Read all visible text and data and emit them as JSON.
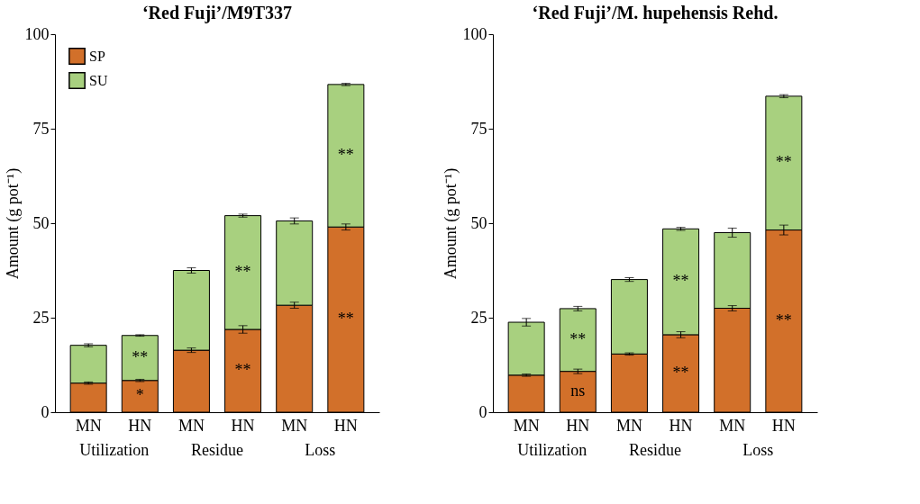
{
  "chart_data": [
    {
      "type": "bar",
      "title": "‘Red Fuji’/M9T337",
      "ylabel": "Amount (g pot⁻¹)",
      "stacked": true,
      "categories": [
        "MN",
        "HN",
        "MN",
        "HN",
        "MN",
        "HN"
      ],
      "annotations": [
        "Utilization",
        "Residue",
        "Loss"
      ],
      "ylim": [
        0,
        100
      ],
      "yticks": [
        0,
        25,
        50,
        75,
        100
      ],
      "grid": false,
      "legend": "top left",
      "series": [
        {
          "name": "SP",
          "color": "#d2702a",
          "values": [
            7.7,
            8.4,
            16.4,
            21.9,
            28.3,
            49.0
          ],
          "errors": [
            0.3,
            0.3,
            0.6,
            1.0,
            0.8,
            0.8
          ],
          "value_labels": [
            null,
            "*",
            null,
            "**",
            null,
            "**"
          ]
        },
        {
          "name": "SU",
          "color": "#a8d07f",
          "values": [
            10.0,
            11.9,
            21.1,
            30.1,
            22.3,
            37.7
          ],
          "errors": [
            0.4,
            0.2,
            0.7,
            0.4,
            0.8,
            0.3
          ],
          "value_labels": [
            null,
            "**",
            null,
            "**",
            null,
            "**"
          ]
        }
      ]
    },
    {
      "type": "bar",
      "title": "‘Red Fuji’/M. hupehensis Rehd.",
      "ylabel": "Amount (g pot⁻¹)",
      "stacked": true,
      "categories": [
        "MN",
        "HN",
        "MN",
        "HN",
        "MN",
        "HN"
      ],
      "annotations": [
        "Utilization",
        "Residue",
        "Loss"
      ],
      "ylim": [
        0,
        100
      ],
      "yticks": [
        0,
        25,
        50,
        75,
        100
      ],
      "grid": false,
      "legend": false,
      "series": [
        {
          "name": "SP",
          "color": "#d2702a",
          "values": [
            9.8,
            10.8,
            15.4,
            20.5,
            27.5,
            48.2
          ],
          "errors": [
            0.3,
            0.6,
            0.3,
            0.8,
            0.7,
            1.3
          ],
          "value_labels": [
            null,
            "ns",
            null,
            "**",
            null,
            "**"
          ]
        },
        {
          "name": "SU",
          "color": "#a8d07f",
          "values": [
            14.0,
            16.6,
            19.7,
            28.0,
            20.0,
            35.4
          ],
          "errors": [
            1.0,
            0.6,
            0.5,
            0.4,
            1.2,
            0.4
          ],
          "value_labels": [
            null,
            "**",
            null,
            "**",
            null,
            "**"
          ]
        }
      ]
    }
  ]
}
